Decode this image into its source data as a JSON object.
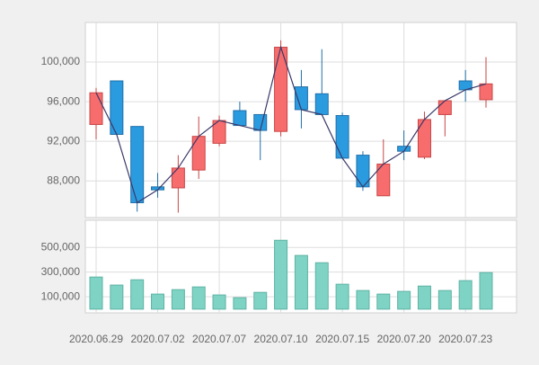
{
  "chart_data": {
    "type": "candlestick",
    "categories": [
      "2020.06.29",
      null,
      null,
      "2020.07.02",
      null,
      null,
      "2020.07.07",
      null,
      null,
      "2020.07.10",
      null,
      null,
      "2020.07.15",
      null,
      null,
      "2020.07.20",
      null,
      null,
      "2020.07.23",
      null
    ],
    "open": [
      93700,
      98100,
      93500,
      87400,
      87300,
      89100,
      91800,
      95100,
      94700,
      93000,
      97500,
      96800,
      94600,
      90600,
      86500,
      91500,
      90400,
      94700,
      98100,
      96200
    ],
    "high": [
      97400,
      98100,
      93500,
      88800,
      90600,
      94500,
      94600,
      96000,
      94700,
      102200,
      99200,
      101300,
      94900,
      91000,
      92200,
      93100,
      95000,
      96100,
      99200,
      100500
    ],
    "low": [
      92200,
      92700,
      84900,
      86300,
      84800,
      88200,
      91500,
      93600,
      90100,
      92500,
      93300,
      94700,
      90300,
      87000,
      86500,
      90100,
      90200,
      92500,
      96000,
      95400
    ],
    "close": [
      96900,
      92700,
      85800,
      87100,
      89300,
      92500,
      94100,
      93600,
      93100,
      101500,
      95200,
      94700,
      90300,
      87400,
      89700,
      91000,
      94200,
      96100,
      97200,
      97800
    ],
    "volume": [
      260000,
      195000,
      238000,
      122000,
      158000,
      180000,
      115000,
      93000,
      136000,
      558000,
      435000,
      376000,
      202000,
      151000,
      122000,
      144000,
      187000,
      151000,
      231000,
      296000
    ],
    "up_color": "#f76d6d",
    "down_color": "#2b9be0",
    "volume_color": "#7fd3c4",
    "line_color": "#3a3a6a",
    "ylim": [
      84300,
      104000
    ],
    "yticks": [
      {
        "value": 88000,
        "label": "88,000"
      },
      {
        "value": 92000,
        "label": "92,000"
      },
      {
        "value": 96000,
        "label": "96,000"
      },
      {
        "value": 100000,
        "label": "100,000"
      }
    ],
    "volume_ylim": [
      -30000,
      720000
    ],
    "volume_yticks": [
      {
        "value": 100000,
        "label": "100,000"
      },
      {
        "value": 300000,
        "label": "300,000"
      },
      {
        "value": 500000,
        "label": "500,000"
      }
    ],
    "grid": true
  }
}
